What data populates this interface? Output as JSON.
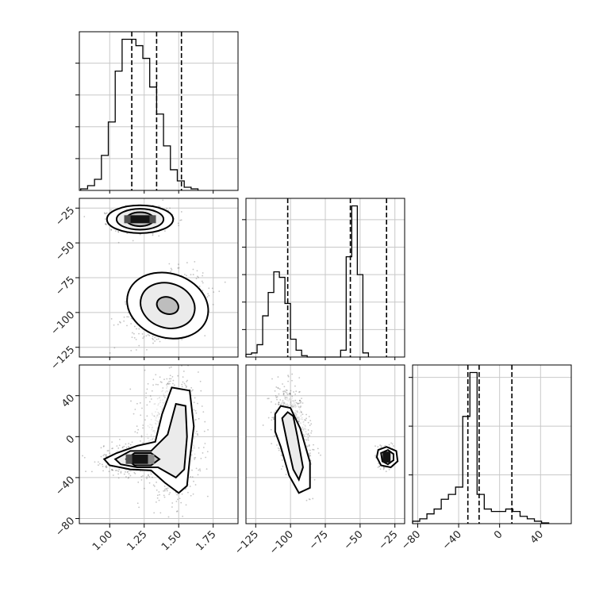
{
  "chart_data": {
    "type": "corner",
    "grid": true,
    "parameters": [
      {
        "index": 0,
        "range": [
          0.78,
          1.93
        ],
        "ticks": [
          1.0,
          1.25,
          1.5,
          1.75
        ],
        "tick_labels": [
          "1.00",
          "1.25",
          "1.50",
          "1.75"
        ],
        "quantiles": [
          1.16,
          1.34,
          1.52
        ],
        "hist_bin_start": 0.79,
        "hist_bin_width": 0.05,
        "hist_counts": [
          1,
          3,
          7,
          22,
          43,
          75,
          95,
          95,
          91,
          83,
          65,
          48,
          28,
          13,
          6,
          2,
          1
        ]
      },
      {
        "index": 1,
        "range": [
          -132,
          -18
        ],
        "ticks": [
          -125,
          -100,
          -75,
          -50,
          -25
        ],
        "tick_labels": [
          "−125",
          "−100",
          "−75",
          "−50",
          "−25"
        ],
        "quantiles": [
          -102,
          -57,
          -31
        ],
        "hist_bin_start": -132,
        "hist_bin_width": 4,
        "hist_counts": [
          2,
          3,
          9,
          30,
          47,
          62,
          58,
          39,
          13,
          5,
          1,
          0,
          0,
          0,
          0,
          0,
          0,
          5,
          73,
          110,
          60,
          3
        ]
      },
      {
        "index": 2,
        "range": [
          -85,
          70
        ],
        "ticks": [
          -80,
          -40,
          0,
          40
        ],
        "tick_labels": [
          "−80",
          "−40",
          "0",
          "40"
        ],
        "quantiles": [
          -31,
          -20,
          12
        ],
        "hist_bin_start": -85,
        "hist_bin_width": 7,
        "hist_counts": [
          1,
          2,
          4,
          6,
          10,
          12,
          15,
          44,
          62,
          12,
          6,
          5,
          5,
          6,
          5,
          3,
          2,
          1,
          0.3
        ]
      }
    ],
    "panels_2d": [
      {
        "x_param": 0,
        "y_param": 1,
        "clusters": [
          {
            "center": [
              1.22,
              -33
            ],
            "sd": [
              0.1,
              4
            ],
            "rho": 0,
            "n": 900,
            "ellipses": [
              [
                0.24,
                10
              ],
              [
                0.17,
                7.5
              ],
              [
                0.1,
                5
              ]
            ]
          },
          {
            "center": [
              1.42,
              -95
            ],
            "sd": [
              0.13,
              11
            ],
            "rho": 0.35,
            "n": 900,
            "ellipses": [
              [
                0.3,
                23
              ],
              [
                0.2,
                16
              ],
              [
                0.08,
                6
              ]
            ]
          }
        ]
      },
      {
        "x_param": 0,
        "y_param": 2,
        "clusters": [
          {
            "center": [
              1.22,
              -22
            ],
            "sd": [
              0.13,
              7
            ],
            "rho": 0,
            "n": 800
          },
          {
            "center": [
              1.45,
              0
            ],
            "sd": [
              0.1,
              28
            ],
            "rho": 0,
            "n": 1000
          }
        ],
        "contours": {
          "outer": [
            [
              0.96,
              -22
            ],
            [
              1.05,
              -16
            ],
            [
              1.2,
              -9
            ],
            [
              1.33,
              -5
            ],
            [
              1.38,
              22
            ],
            [
              1.45,
              48
            ],
            [
              1.58,
              45
            ],
            [
              1.61,
              10
            ],
            [
              1.58,
              -22
            ],
            [
              1.56,
              -48
            ],
            [
              1.5,
              -55
            ],
            [
              1.4,
              -45
            ],
            [
              1.3,
              -33
            ],
            [
              1.15,
              -32
            ],
            [
              1.0,
              -28
            ]
          ],
          "middle": [
            [
              1.04,
              -22
            ],
            [
              1.15,
              -14
            ],
            [
              1.3,
              -14
            ],
            [
              1.42,
              2
            ],
            [
              1.48,
              32
            ],
            [
              1.55,
              30
            ],
            [
              1.56,
              0
            ],
            [
              1.54,
              -32
            ],
            [
              1.48,
              -40
            ],
            [
              1.35,
              -30
            ],
            [
              1.2,
              -30
            ],
            [
              1.08,
              -27
            ]
          ],
          "inner": [
            [
              1.12,
              -22
            ],
            [
              1.18,
              -16
            ],
            [
              1.3,
              -16
            ],
            [
              1.36,
              -22
            ],
            [
              1.3,
              -28
            ],
            [
              1.18,
              -28
            ]
          ]
        }
      },
      {
        "x_param": 1,
        "y_param": 2,
        "clusters": [
          {
            "center": [
              -98,
              5
            ],
            "sd": [
              6,
              20
            ],
            "rho": -0.45,
            "n": 1000
          },
          {
            "center": [
              -31,
              -20
            ],
            "sd": [
              2.5,
              5
            ],
            "rho": 0,
            "n": 300
          }
        ],
        "contours": {
          "outer": [
            [
              -111,
              22
            ],
            [
              -107,
              30
            ],
            [
              -100,
              28
            ],
            [
              -93,
              8
            ],
            [
              -86,
              -25
            ],
            [
              -86,
              -50
            ],
            [
              -94,
              -55
            ],
            [
              -101,
              -38
            ],
            [
              -107,
              -10
            ],
            [
              -111,
              5
            ]
          ],
          "middle": [
            [
              -106,
              18
            ],
            [
              -102,
              24
            ],
            [
              -98,
              20
            ],
            [
              -95,
              0
            ],
            [
              -91,
              -30
            ],
            [
              -94,
              -42
            ],
            [
              -98,
              -32
            ],
            [
              -102,
              -8
            ]
          ],
          "cluster_b_outer": [
            [
              -37,
              -13
            ],
            [
              -31,
              -10
            ],
            [
              -24,
              -14
            ],
            [
              -23,
              -24
            ],
            [
              -28,
              -30
            ],
            [
              -35,
              -28
            ],
            [
              -38,
              -20
            ]
          ],
          "cluster_b_inner": [
            [
              -35,
              -16
            ],
            [
              -30,
              -13
            ],
            [
              -26,
              -17
            ],
            [
              -26,
              -23
            ],
            [
              -30,
              -27
            ],
            [
              -34,
              -24
            ]
          ]
        }
      }
    ]
  }
}
